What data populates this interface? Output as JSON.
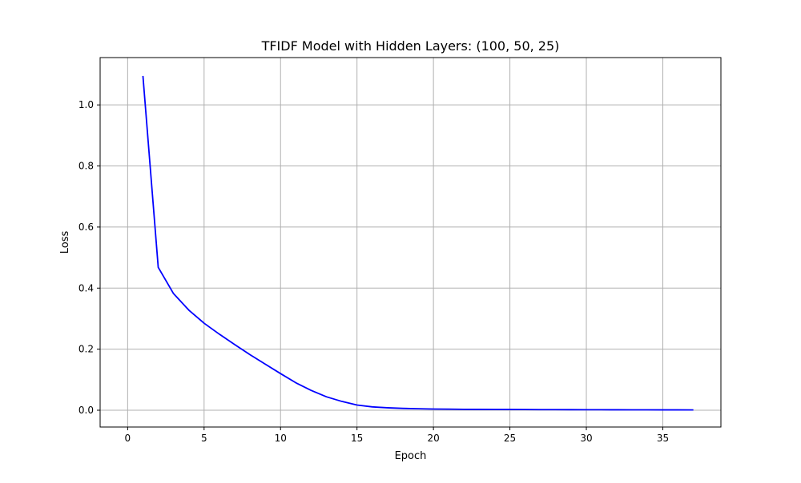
{
  "chart_data": {
    "type": "line",
    "title": "TFIDF Model with Hidden Layers: (100, 50, 25)",
    "xlabel": "Epoch",
    "ylabel": "Loss",
    "xlim": [
      0.0,
      37.0
    ],
    "ylim": [
      -0.055,
      1.155
    ],
    "xticks": [
      0,
      5,
      10,
      15,
      20,
      25,
      30,
      35
    ],
    "yticks": [
      0.0,
      0.2,
      0.4,
      0.6,
      0.8,
      1.0
    ],
    "xtick_labels": [
      "0",
      "5",
      "10",
      "15",
      "20",
      "25",
      "30",
      "35"
    ],
    "ytick_labels": [
      "0.0",
      "0.2",
      "0.4",
      "0.6",
      "0.8",
      "1.0"
    ],
    "grid": true,
    "series": [
      {
        "color": "#0000ff",
        "x": [
          1,
          2,
          3,
          4,
          5,
          6,
          7,
          8,
          9,
          10,
          11,
          12,
          13,
          14,
          15,
          16,
          17,
          18,
          19,
          20,
          21,
          22,
          23,
          24,
          25,
          26,
          27,
          28,
          29,
          30,
          31,
          32,
          33,
          34,
          35,
          36,
          37
        ],
        "y": [
          1.095,
          0.468,
          0.382,
          0.328,
          0.285,
          0.249,
          0.215,
          0.182,
          0.151,
          0.12,
          0.09,
          0.065,
          0.044,
          0.029,
          0.017,
          0.011,
          0.008,
          0.006,
          0.005,
          0.004,
          0.0035,
          0.003,
          0.0028,
          0.0026,
          0.0024,
          0.0022,
          0.002,
          0.0019,
          0.0018,
          0.0017,
          0.0016,
          0.0015,
          0.0014,
          0.0013,
          0.0012,
          0.0011,
          0.001
        ]
      }
    ]
  }
}
